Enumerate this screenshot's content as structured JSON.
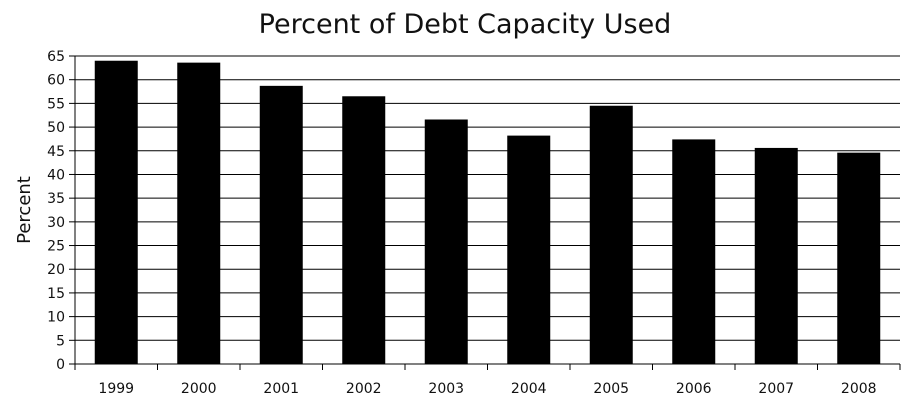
{
  "chart_data": {
    "type": "bar",
    "title": "Percent of Debt Capacity Used",
    "xlabel": "",
    "ylabel": "Percent",
    "categories": [
      "1999",
      "2000",
      "2001",
      "2002",
      "2003",
      "2004",
      "2005",
      "2006",
      "2007",
      "2008"
    ],
    "values": [
      64,
      63.6,
      58.7,
      56.5,
      51.6,
      48.2,
      54.5,
      47.4,
      45.6,
      44.6
    ],
    "ylim": [
      0,
      65
    ],
    "yticks": [
      0,
      5,
      10,
      15,
      20,
      25,
      30,
      35,
      40,
      45,
      50,
      55,
      60,
      65
    ],
    "grid": true,
    "legend": "none",
    "bar_color": "#000000",
    "grid_color": "#000000",
    "axis_color": "#000000"
  }
}
